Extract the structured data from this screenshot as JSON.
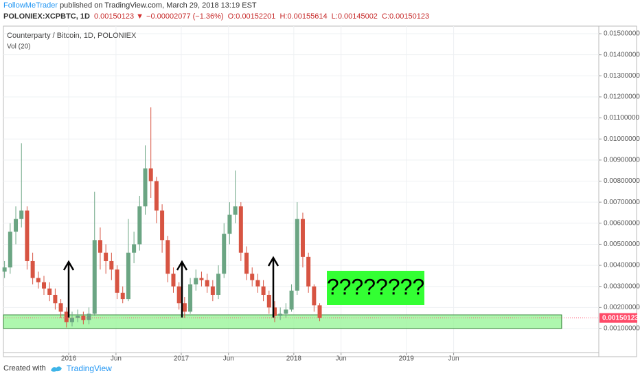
{
  "header": {
    "author": "FollowMeTrader",
    "published": "published on TradingView.com, March 29, 2018 13:19 EST",
    "symbol": "POLONIEX:XCPBTC, 1D",
    "last": "0.00150123",
    "change": "−0.00002077 (−1.36%)",
    "open": "O:0.00152201",
    "high": "H:0.00155614",
    "low": "L:0.00145002",
    "close": "C:0.00150123"
  },
  "footer": {
    "created": "Created with",
    "brand": "TradingView"
  },
  "chart_data": {
    "type": "candlestick",
    "title": "Counterparty / Bitcoin, 1D, POLONIEX",
    "indicator": "Vol (20)",
    "x": [
      2015.43,
      2015.48,
      2015.53,
      2015.58,
      2015.63,
      2015.68,
      2015.73,
      2015.78,
      2015.83,
      2015.88,
      2015.93,
      2015.98,
      2016.03,
      2016.08,
      2016.13,
      2016.18,
      2016.23,
      2016.28,
      2016.33,
      2016.38,
      2016.43,
      2016.48,
      2016.53,
      2016.58,
      2016.63,
      2016.68,
      2016.73,
      2016.78,
      2016.83,
      2016.88,
      2016.93,
      2016.98,
      2017.03,
      2017.08,
      2017.13,
      2017.18,
      2017.23,
      2017.28,
      2017.33,
      2017.38,
      2017.43,
      2017.48,
      2017.53,
      2017.58,
      2017.63,
      2017.68,
      2017.73,
      2017.78,
      2017.83,
      2017.88,
      2017.93,
      2017.98,
      2018.03,
      2018.08,
      2018.13,
      2018.18,
      2018.23
    ],
    "open": [
      0.0037,
      0.0039,
      0.0056,
      0.0062,
      0.0066,
      0.0042,
      0.0034,
      0.0032,
      0.0029,
      0.0026,
      0.0022,
      0.0018,
      0.0013,
      0.0015,
      0.0016,
      0.0014,
      0.0017,
      0.0052,
      0.0046,
      0.0042,
      0.0038,
      0.0027,
      0.0024,
      0.0046,
      0.005,
      0.0068,
      0.0086,
      0.008,
      0.0066,
      0.0052,
      0.0036,
      0.003,
      0.0022,
      0.0018,
      0.0031,
      0.0034,
      0.0033,
      0.003,
      0.0026,
      0.0036,
      0.0055,
      0.0064,
      0.0068,
      0.0046,
      0.0036,
      0.0033,
      0.003,
      0.0026,
      0.002,
      0.0016,
      0.0017,
      0.0019,
      0.0028,
      0.0062,
      0.0044,
      0.003,
      0.0021
    ],
    "high": [
      0.0042,
      0.006,
      0.0068,
      0.0098,
      0.0068,
      0.0046,
      0.0037,
      0.0035,
      0.0032,
      0.0029,
      0.0024,
      0.002,
      0.0018,
      0.0019,
      0.0018,
      0.002,
      0.0075,
      0.0058,
      0.005,
      0.0046,
      0.004,
      0.003,
      0.0062,
      0.0056,
      0.0073,
      0.0097,
      0.0115,
      0.0082,
      0.0069,
      0.0054,
      0.0039,
      0.0032,
      0.0025,
      0.0034,
      0.0038,
      0.0037,
      0.0036,
      0.0033,
      0.004,
      0.006,
      0.007,
      0.0085,
      0.007,
      0.0049,
      0.0039,
      0.0036,
      0.0033,
      0.0028,
      0.0023,
      0.002,
      0.0022,
      0.0031,
      0.007,
      0.0065,
      0.0046,
      0.0031,
      0.0022
    ],
    "low": [
      0.0034,
      0.0036,
      0.005,
      0.0058,
      0.0038,
      0.0031,
      0.0029,
      0.0026,
      0.0023,
      0.0019,
      0.0015,
      0.00105,
      0.0011,
      0.0013,
      0.0012,
      0.0012,
      0.0016,
      0.0038,
      0.0036,
      0.0033,
      0.0024,
      0.0022,
      0.0023,
      0.0041,
      0.0047,
      0.0064,
      0.0072,
      0.006,
      0.0046,
      0.0032,
      0.0027,
      0.0019,
      0.0015,
      0.0017,
      0.0028,
      0.003,
      0.0027,
      0.0023,
      0.0024,
      0.0034,
      0.005,
      0.006,
      0.0042,
      0.0033,
      0.003,
      0.0027,
      0.0023,
      0.0017,
      0.0013,
      0.0014,
      0.0015,
      0.0018,
      0.0026,
      0.0039,
      0.0027,
      0.0018,
      0.00135
    ],
    "close": [
      0.0039,
      0.0056,
      0.0062,
      0.0066,
      0.0042,
      0.0034,
      0.0032,
      0.0029,
      0.0026,
      0.0022,
      0.0018,
      0.0013,
      0.0015,
      0.0016,
      0.0014,
      0.0017,
      0.0052,
      0.0046,
      0.0042,
      0.0038,
      0.0027,
      0.0024,
      0.0046,
      0.005,
      0.0068,
      0.0086,
      0.008,
      0.0066,
      0.0052,
      0.0036,
      0.003,
      0.0022,
      0.0018,
      0.0031,
      0.0034,
      0.0033,
      0.003,
      0.0026,
      0.0036,
      0.0055,
      0.0064,
      0.0068,
      0.0046,
      0.0036,
      0.0033,
      0.003,
      0.0026,
      0.002,
      0.0016,
      0.0017,
      0.0019,
      0.0028,
      0.0062,
      0.0044,
      0.003,
      0.0021,
      0.0015
    ],
    "up_color": "#6ba583",
    "down_color": "#d75442",
    "xlim": [
      2015.42,
      2020.71
    ],
    "ylim": [
      -0.000142,
      0.01536
    ],
    "xticks": [
      2016,
      {
        "value": 2016.42,
        "label": "Jun"
      },
      2017,
      {
        "value": 2017.42,
        "label": "Jun"
      },
      2018,
      {
        "value": 2018.42,
        "label": "Jun"
      },
      2019,
      {
        "value": 2019.42,
        "label": "Jun"
      }
    ],
    "yticks": [
      {
        "value": 0.001,
        "label": "0.00100000"
      },
      {
        "value": 0.002,
        "label": "0.00200000"
      },
      {
        "value": 0.003,
        "label": "0.00300000"
      },
      {
        "value": 0.004,
        "label": "0.00400000"
      },
      {
        "value": 0.005,
        "label": "0.00500000"
      },
      {
        "value": 0.006,
        "label": "0.00600000"
      },
      {
        "value": 0.007,
        "label": "0.00700000"
      },
      {
        "value": 0.008,
        "label": "0.00800000"
      },
      {
        "value": 0.009,
        "label": "0.00900000"
      },
      {
        "value": 0.01,
        "label": "0.01000000"
      },
      {
        "value": 0.011,
        "label": "0.01100000"
      },
      {
        "value": 0.012,
        "label": "0.01200000"
      },
      {
        "value": 0.013,
        "label": "0.01300000"
      },
      {
        "value": 0.014,
        "label": "0.01400000"
      },
      {
        "value": 0.015,
        "label": "0.01500000"
      }
    ],
    "grid": true,
    "last_price": 0.00150123,
    "last_color": "#ff4a68",
    "support_zone": {
      "low": 0.001,
      "high": 0.00165,
      "x_end": 2020.38,
      "color": "#9af59a"
    },
    "annotation": {
      "text": "????????",
      "color": "#33ff33"
    }
  }
}
